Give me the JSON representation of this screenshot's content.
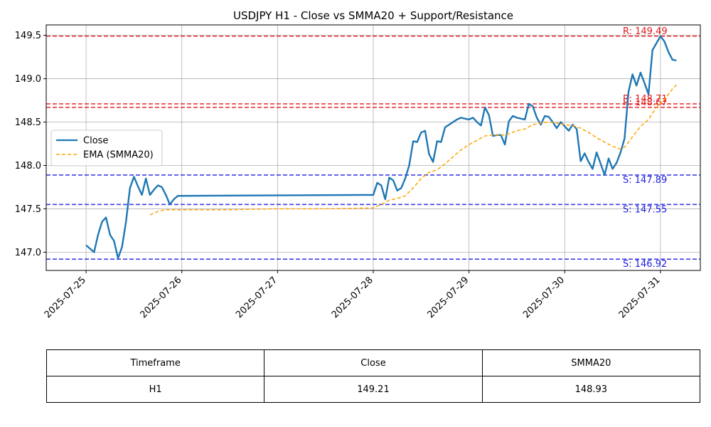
{
  "chart_data": {
    "type": "line",
    "title": "USDJPY H1 - Close vs SMMA20 + Support/Resistance",
    "xlabel": "",
    "ylabel": "",
    "x_tick_labels": [
      "2025-07-25",
      "2025-07-26",
      "2025-07-27",
      "2025-07-28",
      "2025-07-29",
      "2025-07-30",
      "2025-07-31"
    ],
    "xlim": [
      "2025-07-24T14:00",
      "2025-07-31T10:00"
    ],
    "ylim": [
      146.79,
      149.62
    ],
    "y_ticks": [
      "147.0",
      "147.5",
      "148.0",
      "148.5",
      "149.0",
      "149.5"
    ],
    "grid": true,
    "legend_placement": "center-left",
    "colors": {
      "close": "#1f77b4",
      "smma": "#ffa500",
      "resistance": "#e41a1c",
      "support": "#1f1fe0",
      "grid": "#b0b0b0"
    },
    "series": [
      {
        "name": "Close",
        "style": "solid",
        "points": [
          [
            "2025-07-25T00:00",
            147.08
          ],
          [
            "2025-07-25T01:00",
            147.04
          ],
          [
            "2025-07-25T02:00",
            147.0
          ],
          [
            "2025-07-25T03:00",
            147.2
          ],
          [
            "2025-07-25T04:00",
            147.35
          ],
          [
            "2025-07-25T05:00",
            147.4
          ],
          [
            "2025-07-25T06:00",
            147.2
          ],
          [
            "2025-07-25T07:00",
            147.13
          ],
          [
            "2025-07-25T08:00",
            146.93
          ],
          [
            "2025-07-25T09:00",
            147.06
          ],
          [
            "2025-07-25T10:00",
            147.35
          ],
          [
            "2025-07-25T11:00",
            147.74
          ],
          [
            "2025-07-25T12:00",
            147.87
          ],
          [
            "2025-07-25T13:00",
            147.76
          ],
          [
            "2025-07-25T14:00",
            147.66
          ],
          [
            "2025-07-25T15:00",
            147.85
          ],
          [
            "2025-07-25T16:00",
            147.66
          ],
          [
            "2025-07-25T17:00",
            147.72
          ],
          [
            "2025-07-25T18:00",
            147.77
          ],
          [
            "2025-07-25T19:00",
            147.75
          ],
          [
            "2025-07-25T20:00",
            147.66
          ],
          [
            "2025-07-25T21:00",
            147.55
          ],
          [
            "2025-07-25T22:00",
            147.61
          ],
          [
            "2025-07-25T23:00",
            147.65
          ],
          [
            "2025-07-28T00:00",
            147.66
          ],
          [
            "2025-07-28T01:00",
            147.8
          ],
          [
            "2025-07-28T02:00",
            147.77
          ],
          [
            "2025-07-28T03:00",
            147.61
          ],
          [
            "2025-07-28T04:00",
            147.86
          ],
          [
            "2025-07-28T05:00",
            147.83
          ],
          [
            "2025-07-28T06:00",
            147.71
          ],
          [
            "2025-07-28T07:00",
            147.74
          ],
          [
            "2025-07-28T08:00",
            147.85
          ],
          [
            "2025-07-28T09:00",
            148.0
          ],
          [
            "2025-07-28T10:00",
            148.28
          ],
          [
            "2025-07-28T11:00",
            148.27
          ],
          [
            "2025-07-28T12:00",
            148.38
          ],
          [
            "2025-07-28T13:00",
            148.4
          ],
          [
            "2025-07-28T14:00",
            148.13
          ],
          [
            "2025-07-28T15:00",
            148.04
          ],
          [
            "2025-07-28T16:00",
            148.28
          ],
          [
            "2025-07-28T17:00",
            148.27
          ],
          [
            "2025-07-28T18:00",
            148.44
          ],
          [
            "2025-07-28T19:00",
            148.47
          ],
          [
            "2025-07-28T20:00",
            148.5
          ],
          [
            "2025-07-28T21:00",
            148.53
          ],
          [
            "2025-07-28T22:00",
            148.55
          ],
          [
            "2025-07-28T23:00",
            148.54
          ],
          [
            "2025-07-29T00:00",
            148.53
          ],
          [
            "2025-07-29T01:00",
            148.55
          ],
          [
            "2025-07-29T02:00",
            148.5
          ],
          [
            "2025-07-29T03:00",
            148.46
          ],
          [
            "2025-07-29T04:00",
            148.67
          ],
          [
            "2025-07-29T05:00",
            148.58
          ],
          [
            "2025-07-29T06:00",
            148.34
          ],
          [
            "2025-07-29T07:00",
            148.35
          ],
          [
            "2025-07-29T08:00",
            148.35
          ],
          [
            "2025-07-29T09:00",
            148.24
          ],
          [
            "2025-07-29T10:00",
            148.51
          ],
          [
            "2025-07-29T11:00",
            148.57
          ],
          [
            "2025-07-29T12:00",
            148.55
          ],
          [
            "2025-07-29T13:00",
            148.54
          ],
          [
            "2025-07-29T14:00",
            148.53
          ],
          [
            "2025-07-29T15:00",
            148.71
          ],
          [
            "2025-07-29T16:00",
            148.68
          ],
          [
            "2025-07-29T17:00",
            148.55
          ],
          [
            "2025-07-29T18:00",
            148.47
          ],
          [
            "2025-07-29T19:00",
            148.57
          ],
          [
            "2025-07-29T20:00",
            148.56
          ],
          [
            "2025-07-29T21:00",
            148.5
          ],
          [
            "2025-07-29T22:00",
            148.43
          ],
          [
            "2025-07-29T23:00",
            148.5
          ],
          [
            "2025-07-30T00:00",
            148.45
          ],
          [
            "2025-07-30T01:00",
            148.4
          ],
          [
            "2025-07-30T02:00",
            148.47
          ],
          [
            "2025-07-30T03:00",
            148.42
          ],
          [
            "2025-07-30T04:00",
            148.05
          ],
          [
            "2025-07-30T05:00",
            148.14
          ],
          [
            "2025-07-30T06:00",
            148.04
          ],
          [
            "2025-07-30T07:00",
            147.96
          ],
          [
            "2025-07-30T08:00",
            148.15
          ],
          [
            "2025-07-30T09:00",
            148.02
          ],
          [
            "2025-07-30T10:00",
            147.89
          ],
          [
            "2025-07-30T11:00",
            148.08
          ],
          [
            "2025-07-30T12:00",
            147.96
          ],
          [
            "2025-07-30T13:00",
            148.03
          ],
          [
            "2025-07-30T14:00",
            148.15
          ],
          [
            "2025-07-30T15:00",
            148.31
          ],
          [
            "2025-07-30T16:00",
            148.85
          ],
          [
            "2025-07-30T17:00",
            149.05
          ],
          [
            "2025-07-30T18:00",
            148.92
          ],
          [
            "2025-07-30T19:00",
            149.07
          ],
          [
            "2025-07-30T20:00",
            148.95
          ],
          [
            "2025-07-30T21:00",
            148.82
          ],
          [
            "2025-07-30T22:00",
            149.33
          ],
          [
            "2025-07-30T23:00",
            149.41
          ],
          [
            "2025-07-31T00:00",
            149.49
          ],
          [
            "2025-07-31T01:00",
            149.43
          ],
          [
            "2025-07-31T02:00",
            149.31
          ],
          [
            "2025-07-31T03:00",
            149.22
          ],
          [
            "2025-07-31T04:00",
            149.21
          ]
        ]
      },
      {
        "name": "EMA (SMMA20)",
        "style": "dashed",
        "points": [
          [
            "2025-07-25T16:00",
            147.43
          ],
          [
            "2025-07-25T18:00",
            147.47
          ],
          [
            "2025-07-25T20:00",
            147.49
          ],
          [
            "2025-07-25T23:00",
            147.49
          ],
          [
            "2025-07-26T12:00",
            147.49
          ],
          [
            "2025-07-27T00:00",
            147.5
          ],
          [
            "2025-07-27T12:00",
            147.5
          ],
          [
            "2025-07-28T00:00",
            147.51
          ],
          [
            "2025-07-28T02:00",
            147.55
          ],
          [
            "2025-07-28T04:00",
            147.6
          ],
          [
            "2025-07-28T06:00",
            147.62
          ],
          [
            "2025-07-28T08:00",
            147.65
          ],
          [
            "2025-07-28T10:00",
            147.74
          ],
          [
            "2025-07-28T12:00",
            147.85
          ],
          [
            "2025-07-28T14:00",
            147.92
          ],
          [
            "2025-07-28T16:00",
            147.95
          ],
          [
            "2025-07-28T18:00",
            148.02
          ],
          [
            "2025-07-28T20:00",
            148.1
          ],
          [
            "2025-07-28T22:00",
            148.18
          ],
          [
            "2025-07-29T00:00",
            148.24
          ],
          [
            "2025-07-29T02:00",
            148.29
          ],
          [
            "2025-07-29T04:00",
            148.34
          ],
          [
            "2025-07-29T06:00",
            148.35
          ],
          [
            "2025-07-29T09:00",
            148.35
          ],
          [
            "2025-07-29T12:00",
            148.4
          ],
          [
            "2025-07-29T14:00",
            148.42
          ],
          [
            "2025-07-29T16:00",
            148.47
          ],
          [
            "2025-07-29T18:00",
            148.49
          ],
          [
            "2025-07-29T20:00",
            148.5
          ],
          [
            "2025-07-29T22:00",
            148.49
          ],
          [
            "2025-07-30T00:00",
            148.47
          ],
          [
            "2025-07-30T02:00",
            148.46
          ],
          [
            "2025-07-30T04:00",
            148.43
          ],
          [
            "2025-07-30T06:00",
            148.38
          ],
          [
            "2025-07-30T08:00",
            148.32
          ],
          [
            "2025-07-30T10:00",
            148.27
          ],
          [
            "2025-07-30T12:00",
            148.22
          ],
          [
            "2025-07-30T14:00",
            148.19
          ],
          [
            "2025-07-30T15:00",
            148.21
          ],
          [
            "2025-07-30T17:00",
            148.33
          ],
          [
            "2025-07-30T19:00",
            148.45
          ],
          [
            "2025-07-30T21:00",
            148.53
          ],
          [
            "2025-07-30T23:00",
            148.67
          ],
          [
            "2025-07-31T01:00",
            148.76
          ],
          [
            "2025-07-31T03:00",
            148.88
          ],
          [
            "2025-07-31T04:00",
            148.93
          ]
        ]
      }
    ],
    "levels": [
      {
        "kind": "resistance",
        "value": 149.49,
        "label": "R: 149.49"
      },
      {
        "kind": "resistance",
        "value": 148.71,
        "label": "R: 148.71"
      },
      {
        "kind": "resistance",
        "value": 148.67,
        "label": "R: 148.67"
      },
      {
        "kind": "support",
        "value": 147.89,
        "label": "S: 147.89"
      },
      {
        "kind": "support",
        "value": 147.55,
        "label": "S: 147.55"
      },
      {
        "kind": "support",
        "value": 146.92,
        "label": "S: 146.92"
      }
    ]
  },
  "table": {
    "headers": [
      "Timeframe",
      "Close",
      "SMMA20"
    ],
    "rows": [
      [
        "H1",
        "149.21",
        "148.93"
      ]
    ]
  }
}
